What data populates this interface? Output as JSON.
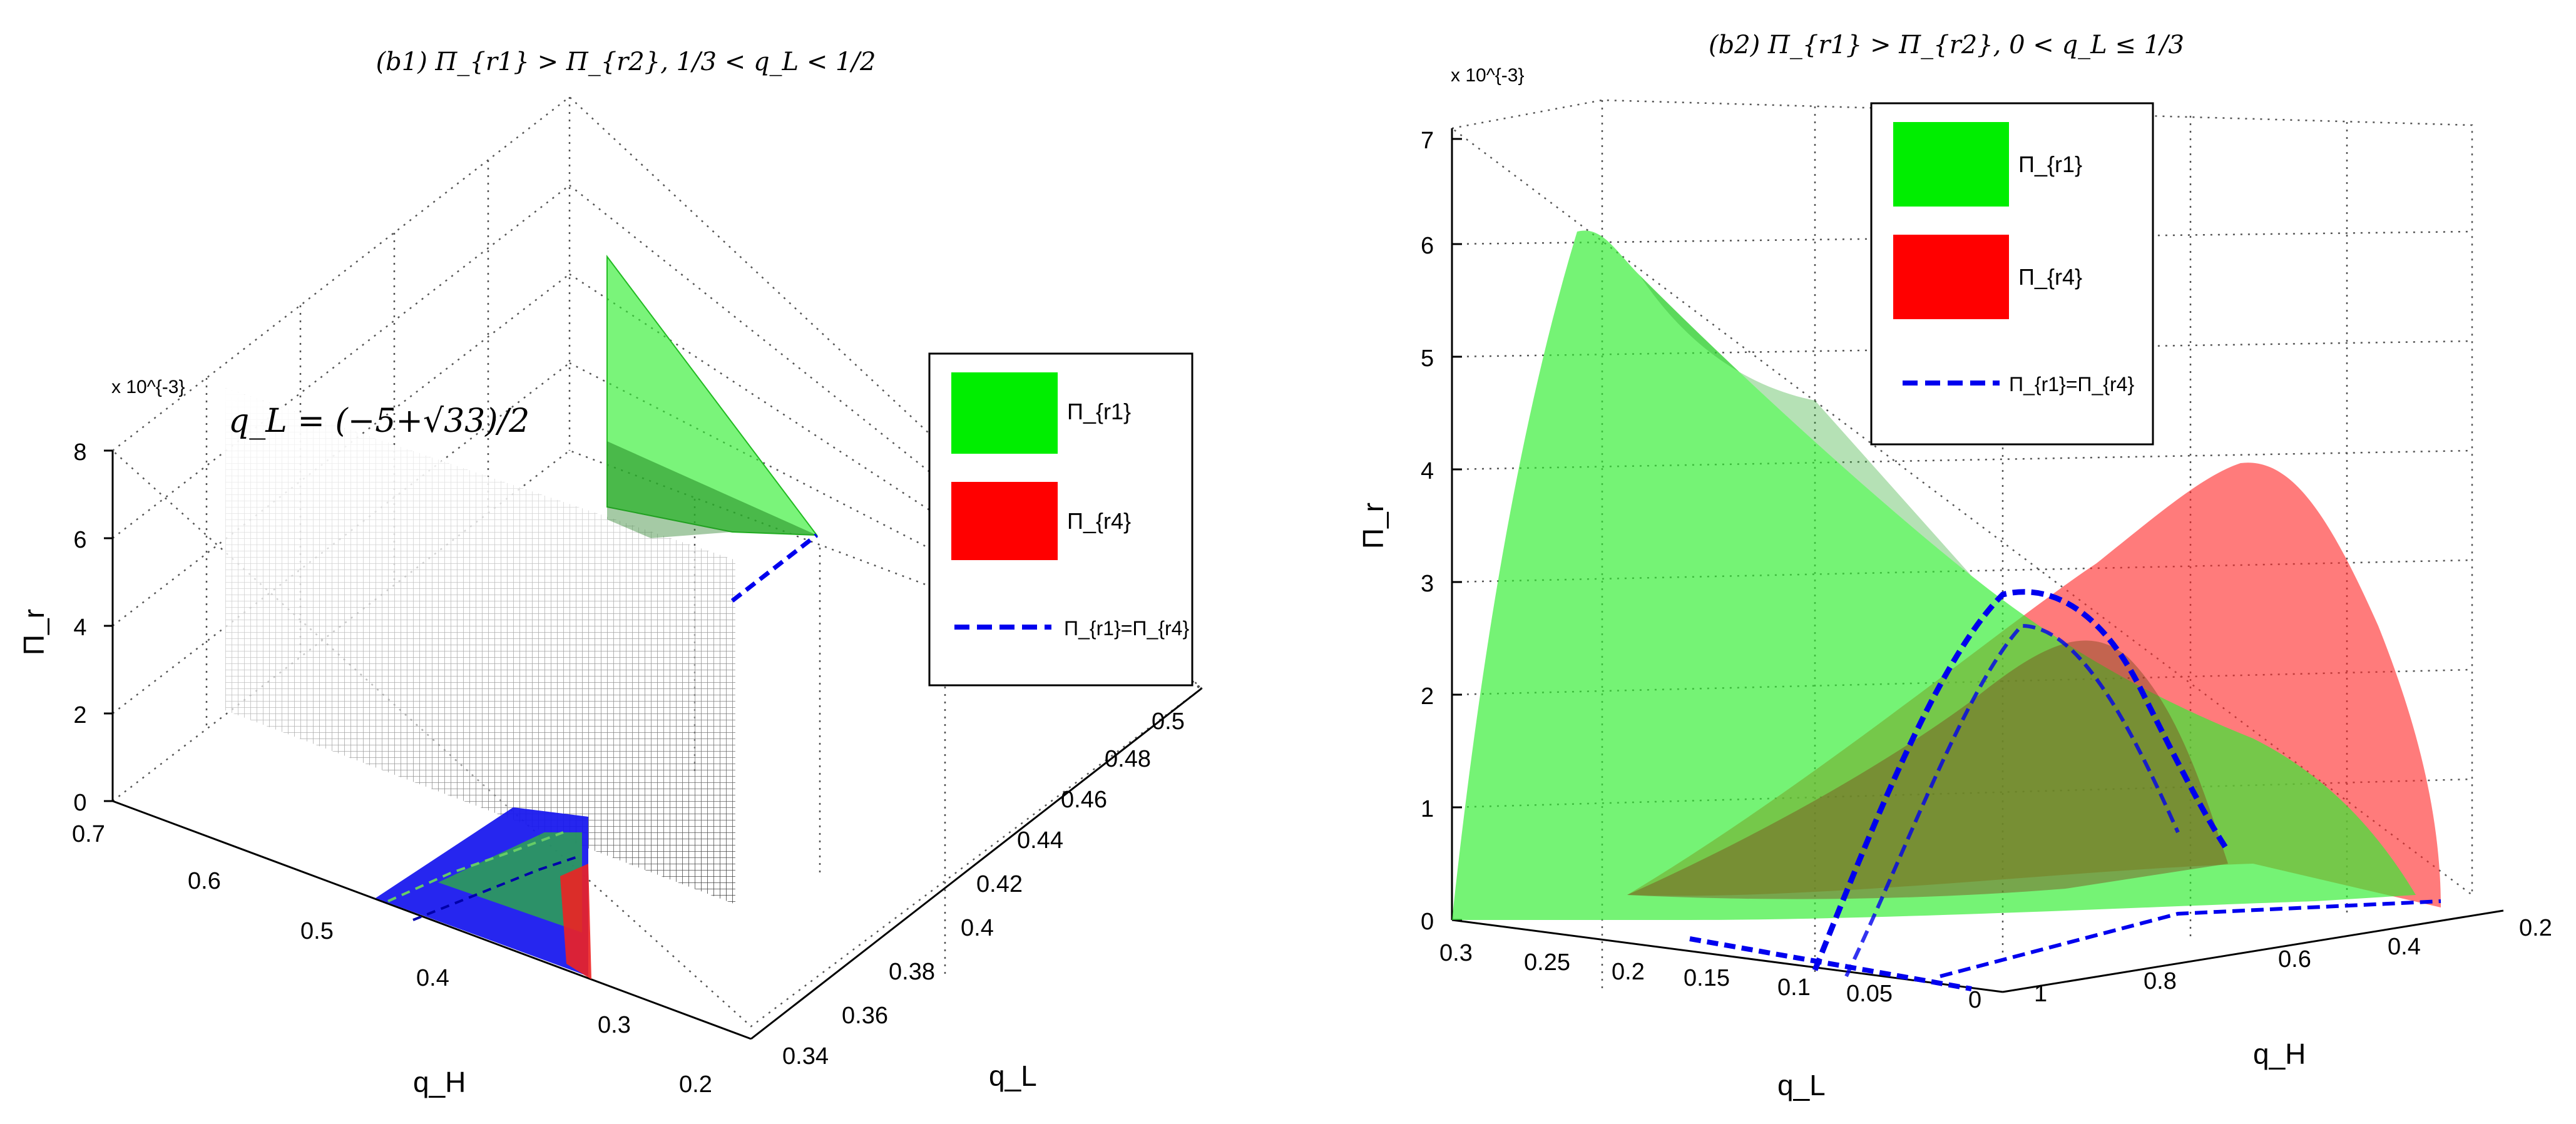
{
  "chart_data": [
    {
      "type": "surface3d",
      "title": "(b1) Π_{r1} > Π_{r2},  1/3 < q_L < 1/2",
      "zlabel": "Π_r",
      "xlabel": "q_H",
      "ylabel": "q_L",
      "z_exponent": "x 10^{-3}",
      "annotation": "q_L = (−5+√33)/2",
      "zlim": [
        0,
        8
      ],
      "z_ticks": [
        "0",
        "2",
        "4",
        "6",
        "8"
      ],
      "qH_ticks": [
        "0.7",
        "0.6",
        "0.5",
        "0.4",
        "0.3",
        "0.2"
      ],
      "qL_ticks": [
        "0.34",
        "0.36",
        "0.38",
        "0.4",
        "0.42",
        "0.44",
        "0.46",
        "0.48",
        "0.5"
      ],
      "legend": [
        "Π_{r1}",
        "Π_{r4}",
        "Π_{r1}=Π_{r4}"
      ],
      "legend_position": "right",
      "grid": true,
      "series": [
        {
          "name": "Π_{r1}",
          "color": "#00ee00"
        },
        {
          "name": "Π_{r4}",
          "color": "#ff0000"
        },
        {
          "name": "Π_{r1}=Π_{r4}",
          "color": "#0000ff",
          "style": "dashed"
        }
      ]
    },
    {
      "type": "surface3d",
      "title": "(b2) Π_{r1} > Π_{r2},  0 < q_L ≤ 1/3",
      "zlabel": "Π_r",
      "xlabel": "q_H",
      "ylabel": "q_L",
      "z_exponent": "x 10^{-3}",
      "zlim": [
        0,
        7
      ],
      "z_ticks": [
        "0",
        "1",
        "2",
        "3",
        "4",
        "5",
        "6",
        "7"
      ],
      "qL_ticks": [
        "0.3",
        "0.25",
        "0.2",
        "0.15",
        "0.1",
        "0.05",
        "0"
      ],
      "qH_ticks": [
        "1",
        "0.8",
        "0.6",
        "0.4",
        "0.2"
      ],
      "legend": [
        "Π_{r1}",
        "Π_{r4}",
        "Π_{r1}=Π_{r4}"
      ],
      "legend_position": "top",
      "grid": true,
      "series": [
        {
          "name": "Π_{r1}",
          "color": "#00ee00",
          "peak": 6.1
        },
        {
          "name": "Π_{r4}",
          "color": "#ff0000",
          "peak": 4.1
        },
        {
          "name": "Π_{r1}=Π_{r4}",
          "color": "#0000ff",
          "style": "dashed"
        }
      ]
    }
  ]
}
